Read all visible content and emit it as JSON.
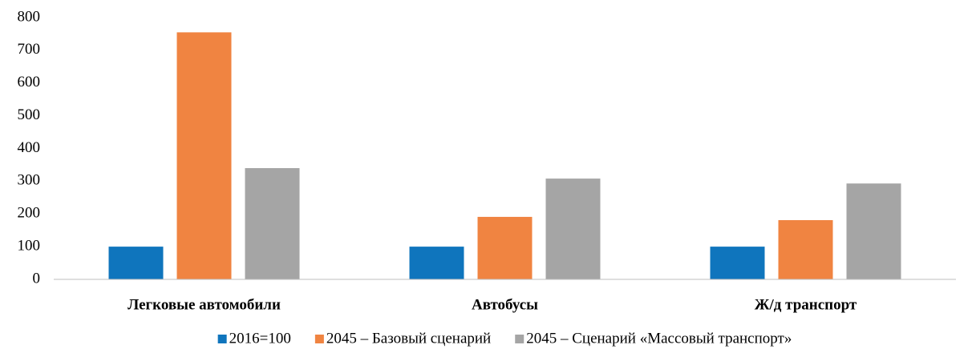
{
  "chart_data": {
    "type": "bar",
    "categories": [
      "Легковые автомобили",
      "Автобусы",
      "Ж/д транспорт"
    ],
    "series": [
      {
        "name": "2016=100",
        "color": "#0f75bd",
        "values": [
          100,
          100,
          100
        ]
      },
      {
        "name": "2045 – Базовый сценарий",
        "color": "#f08441",
        "values": [
          755,
          191,
          181
        ]
      },
      {
        "name": "2045 – Сценарий «Массовый транспорт»",
        "color": "#a5a5a5",
        "values": [
          340,
          308,
          293
        ]
      }
    ],
    "ylim": [
      0,
      800
    ],
    "yticks": [
      0,
      100,
      200,
      300,
      400,
      500,
      600,
      700,
      800
    ],
    "grid": false,
    "legend": "bottom"
  }
}
